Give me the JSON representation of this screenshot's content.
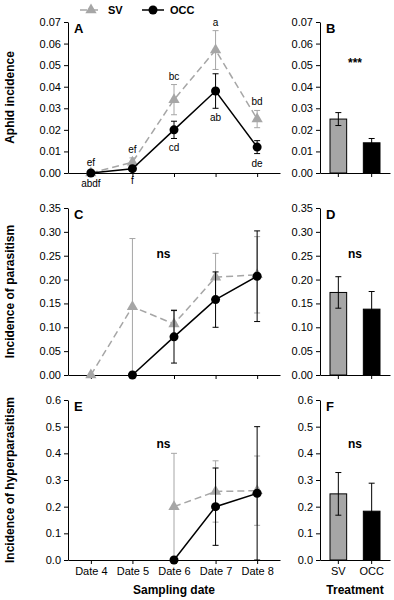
{
  "chart_data": [
    {
      "type": "line",
      "title": "A",
      "ylabel": "Aphid incidence",
      "categories": [
        "Date 4",
        "Date 5",
        "Date 6",
        "Date 7",
        "Date 8"
      ],
      "series": [
        {
          "name": "SV",
          "color": "#a6a6a6",
          "marker": "triangle",
          "line_style": "dashed",
          "values": [
            0.0,
            0.005,
            0.034,
            0.057,
            0.025
          ],
          "errors": [
            0.001,
            0.002,
            0.007,
            0.009,
            0.004
          ],
          "labels": [
            "ef",
            "ef",
            "bc",
            "a",
            "bd"
          ]
        },
        {
          "name": "OCC",
          "color": "#000000",
          "marker": "circle",
          "line_style": "solid",
          "values": [
            0.0,
            0.002,
            0.02,
            0.038,
            0.012
          ],
          "errors": [
            0.0005,
            0.001,
            0.004,
            0.008,
            0.003
          ],
          "labels": [
            "abdf",
            "f",
            "cd",
            "ab",
            "de"
          ]
        }
      ],
      "ylim": [
        0,
        0.07
      ],
      "yticks": [
        {
          "value": 0,
          "label": "0.00"
        },
        0.01,
        0.02,
        0.03,
        0.04,
        0.05,
        0.06,
        0.07
      ],
      "legend": "top",
      "tick_labels": "y"
    },
    {
      "type": "bar",
      "title": "B",
      "categories": [
        "SV",
        "OCC"
      ],
      "values": [
        0.025,
        0.014
      ],
      "errors": [
        0.003,
        0.002
      ],
      "colors": [
        "#a6a6a6",
        "#000000"
      ],
      "ylim": [
        0,
        0.07
      ],
      "yticks": [
        {
          "value": 0,
          "label": "0.00"
        },
        0.01,
        0.02,
        0.03,
        0.04,
        0.05,
        0.06,
        0.07
      ],
      "annotations": [
        "***"
      ],
      "tick_labels": "y"
    },
    {
      "type": "line",
      "title": "C",
      "ylabel": "Incidence of parasitism",
      "categories": [
        "Date 4",
        "Date 5",
        "Date 6",
        "Date 7",
        "Date 8"
      ],
      "series": [
        {
          "color": "#a6a6a6",
          "marker": "triangle",
          "line_style": "dashed",
          "values": [
            0.0,
            0.143,
            0.107,
            0.205,
            0.21
          ],
          "errors": [
            null,
            0.143,
            0.03,
            0.05,
            0.08
          ]
        },
        {
          "color": "#000000",
          "marker": "circle",
          "line_style": "solid",
          "values": [
            null,
            0.0,
            0.08,
            0.158,
            0.207
          ],
          "errors": [
            null,
            null,
            0.055,
            0.058,
            0.095
          ]
        }
      ],
      "ylim": [
        0,
        0.35
      ],
      "yticks": [
        {
          "value": 0,
          "label": "0.00"
        },
        0.05,
        {
          "value": 0.1,
          "label": "0.10"
        },
        0.15,
        {
          "value": 0.2,
          "label": "0.20"
        },
        0.25,
        {
          "value": 0.3,
          "label": "0.30"
        },
        0.35
      ],
      "annotations": [
        "ns"
      ],
      "tick_labels": "y"
    },
    {
      "type": "bar",
      "title": "D",
      "categories": [
        "SV",
        "OCC"
      ],
      "values": [
        0.173,
        0.138
      ],
      "errors": [
        0.033,
        0.037
      ],
      "colors": [
        "#a6a6a6",
        "#000000"
      ],
      "ylim": [
        0,
        0.35
      ],
      "yticks": [
        {
          "value": 0,
          "label": "0.00"
        },
        0.05,
        {
          "value": 0.1,
          "label": "0.10"
        },
        0.15,
        {
          "value": 0.2,
          "label": "0.20"
        },
        0.25,
        {
          "value": 0.3,
          "label": "0.30"
        },
        0.35
      ],
      "annotations": [
        "ns"
      ],
      "tick_labels": "y"
    },
    {
      "type": "line",
      "title": "E",
      "ylabel": "Incidence of hyperparasitism",
      "xlabel": "Sampling date",
      "categories": [
        "Date 4",
        "Date 5",
        "Date 6",
        "Date 7",
        "Date 8"
      ],
      "series": [
        {
          "color": "#a6a6a6",
          "marker": "triangle",
          "line_style": "dashed",
          "values": [
            null,
            null,
            0.2,
            0.257,
            0.26
          ],
          "errors": [
            null,
            null,
            0.2,
            0.115,
            0.13
          ]
        },
        {
          "color": "#000000",
          "marker": "circle",
          "line_style": "solid",
          "values": [
            null,
            null,
            0.0,
            0.2,
            0.25
          ],
          "errors": [
            null,
            null,
            null,
            0.145,
            0.25
          ]
        }
      ],
      "ylim": [
        0,
        0.6
      ],
      "yticks": [
        {
          "value": 0,
          "label": "0.0"
        },
        0.1,
        0.2,
        0.3,
        0.4,
        0.5,
        0.6
      ],
      "annotations": [
        "ns"
      ]
    },
    {
      "type": "bar",
      "title": "F",
      "xlabel": "Treatment",
      "categories": [
        "SV",
        "OCC"
      ],
      "values": [
        0.248,
        0.183
      ],
      "errors": [
        0.08,
        0.105
      ],
      "colors": [
        "#a6a6a6",
        "#000000"
      ],
      "ylim": [
        0,
        0.6
      ],
      "yticks": [
        {
          "value": 0,
          "label": "0.0"
        },
        0.1,
        0.2,
        0.3,
        0.4,
        0.5,
        0.6
      ],
      "annotations": [
        "ns"
      ]
    }
  ]
}
